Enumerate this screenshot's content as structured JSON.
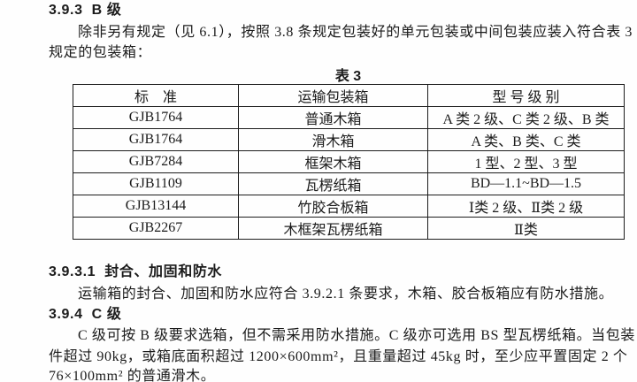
{
  "sections": {
    "s393": {
      "heading": "3.9.3  B 级"
    },
    "s3931": {
      "heading": "3.9.3.1  封合、加固和防水",
      "body": "运输箱的封合、加固和防水应符合 3.9.2.1 条要求，木箱、胶合板箱应有防水措施。"
    },
    "s394": {
      "heading": "3.9.4  C 级"
    }
  },
  "para393": {
    "line1": "除非另有规定（见 6.1），按照 3.8 条规定包装好的单元包装或中间包装应装入符合表 3",
    "line2": "规定的包装箱："
  },
  "table3": {
    "caption": "表 3",
    "headers": [
      "标　准",
      "运输包装箱",
      "型 号 级 别"
    ],
    "rows": [
      [
        "GJB1764",
        "普通木箱",
        "A 类 2 级、C 类 2 级、B 类"
      ],
      [
        "GJB1764",
        "滑木箱",
        "A 类、B 类、C 类"
      ],
      [
        "GJB7284",
        "框架木箱",
        "1 型、2 型、3 型"
      ],
      [
        "GJB1109",
        "瓦楞纸箱",
        "BD—1.1~BD—1.5"
      ],
      [
        "GJB13144",
        "竹胶合板箱",
        "Ⅰ类 2 级、Ⅱ类 2 级"
      ],
      [
        "GJB2267",
        "木框架瓦楞纸箱",
        "Ⅱ类"
      ]
    ]
  },
  "para394": {
    "line1": "C 级可按 B 级要求选箱，但不需采用防水措施。C 级亦可选用 BS 型瓦楞纸箱。当包装",
    "line2": "件超过 90kg，或箱底面积超过 1200×600mm²，且重量超过 45kg 时，至少应平置固定 2 个",
    "line3": "76×100mm² 的普通滑木。"
  }
}
